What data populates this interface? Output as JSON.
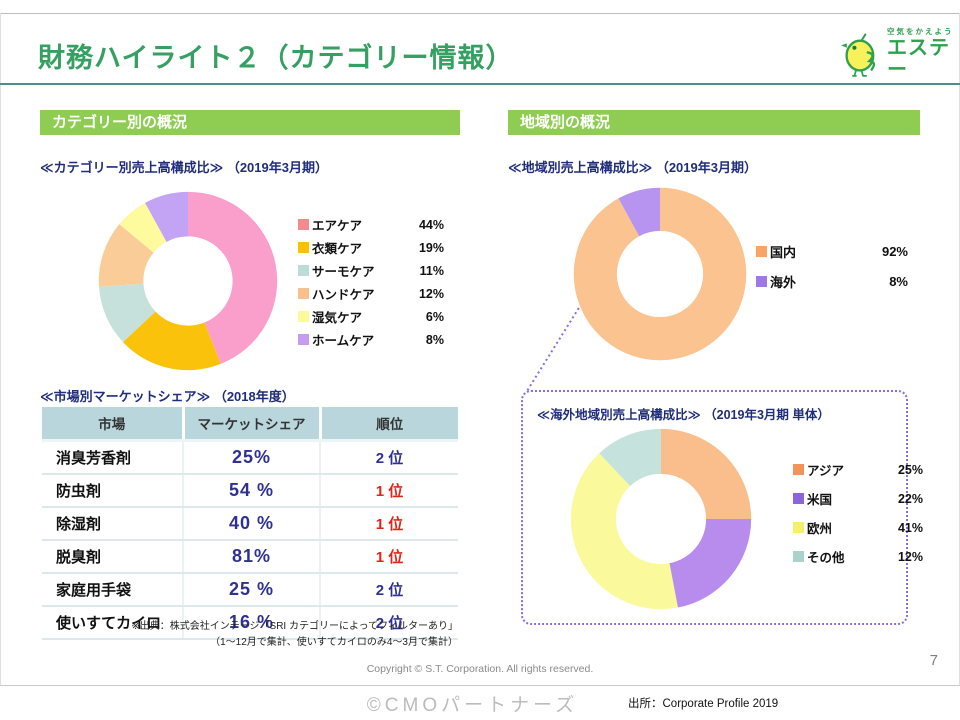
{
  "header": {
    "title": "財務ハイライト２（カテゴリー情報）",
    "logo": {
      "tagline": "空気をかえよう",
      "brand": "エステー"
    }
  },
  "left": {
    "section_title": "カテゴリー別の概況",
    "chart_caption": "≪カテゴリー別売上高構成比≫ （2019年3月期）",
    "table_caption": "≪市場別マーケットシェア≫ （2018年度）",
    "table": {
      "headers": [
        "市場",
        "マーケットシェア",
        "順位"
      ],
      "rows": [
        {
          "market": "消臭芳香剤",
          "share": "25%",
          "rank": "2 位",
          "rank_color": "blue"
        },
        {
          "market": "防虫剤",
          "share": "54 %",
          "rank": "1 位",
          "rank_color": "red"
        },
        {
          "market": "除湿剤",
          "share": "40 %",
          "rank": "1 位",
          "rank_color": "red"
        },
        {
          "market": "脱臭剤",
          "share": "81%",
          "rank": "1 位",
          "rank_color": "red"
        },
        {
          "market": "家庭用手袋",
          "share": "25 %",
          "rank": "2 位",
          "rank_color": "blue"
        },
        {
          "market": "使いすてカイロ",
          "share": "16 %",
          "rank": "2 位",
          "rank_color": "blue"
        }
      ]
    },
    "footnote_line1": "※出典：株式会社インテージ「SRI カテゴリーによってフィルターあり」",
    "footnote_line2": "（1～12月で集計、使いすてカイロのみ4～3月で集計）"
  },
  "right": {
    "section_title": "地域別の概況",
    "chart_caption": "≪地域別売上高構成比≫ （2019年3月期）",
    "overseas_caption": "≪海外地域別売上高構成比≫ （2019年3月期 単体）"
  },
  "footer": {
    "copyright": "Copyright © S.T. Corporation. All rights reserved.",
    "page_number": "7",
    "watermark": "©CMOパートナーズ",
    "source": "出所：Corporate Profile 2019"
  },
  "colors": {
    "title_green": "#35a061",
    "bar_green": "#8fcc52",
    "navy": "#1f2d7b",
    "value_navy": "#2e3192",
    "rank_red": "#e02418",
    "dash_purple": "#8b6fd8"
  },
  "chart_data": [
    {
      "id": "category",
      "type": "pie",
      "variant": "donut",
      "title": "カテゴリー別売上高構成比（2019年3月期）",
      "labels": [
        "エアケア",
        "衣類ケア",
        "サーモケア",
        "ハンドケア",
        "湿気ケア",
        "ホームケア"
      ],
      "values": [
        44,
        19,
        11,
        12,
        6,
        8
      ],
      "display": [
        "44%",
        "19%",
        "11%",
        "12%",
        "6%",
        "8%"
      ],
      "colors": [
        "#fa9ecb",
        "#fbc20b",
        "#c6e1db",
        "#facd98",
        "#fefb9e",
        "#c3a3f4"
      ],
      "marker_colors": [
        "#f28b8b",
        "#fcc00a",
        "#bcdcd8",
        "#f8c08e",
        "#fdfa9b",
        "#c79bef"
      ],
      "legend_position": "right",
      "start_angle": 0,
      "direction": "clockwise"
    },
    {
      "id": "region",
      "type": "pie",
      "variant": "donut",
      "title": "地域別売上高構成比（2019年3月期）",
      "labels": [
        "国内",
        "海外"
      ],
      "values": [
        92,
        8
      ],
      "display": [
        "92%",
        "8%"
      ],
      "colors": [
        "#fac38f",
        "#b694f0"
      ],
      "marker_colors": [
        "#f9a465",
        "#9e79e6"
      ],
      "legend_position": "right",
      "start_angle": 0,
      "direction": "clockwise"
    },
    {
      "id": "overseas",
      "type": "pie",
      "variant": "donut",
      "title": "海外地域別売上高構成比（2019年3月期 単体）",
      "labels": [
        "アジア",
        "米国",
        "欧州",
        "その他"
      ],
      "values": [
        25,
        22,
        41,
        12
      ],
      "display": [
        "25%",
        "22%",
        "41%",
        "12%"
      ],
      "colors": [
        "#fabe8c",
        "#b88cec",
        "#faf99c",
        "#c5e2dc"
      ],
      "marker_colors": [
        "#f2945a",
        "#8e64dc",
        "#f5f067",
        "#abd3cc"
      ],
      "legend_position": "right",
      "start_angle": 0,
      "direction": "clockwise"
    }
  ]
}
